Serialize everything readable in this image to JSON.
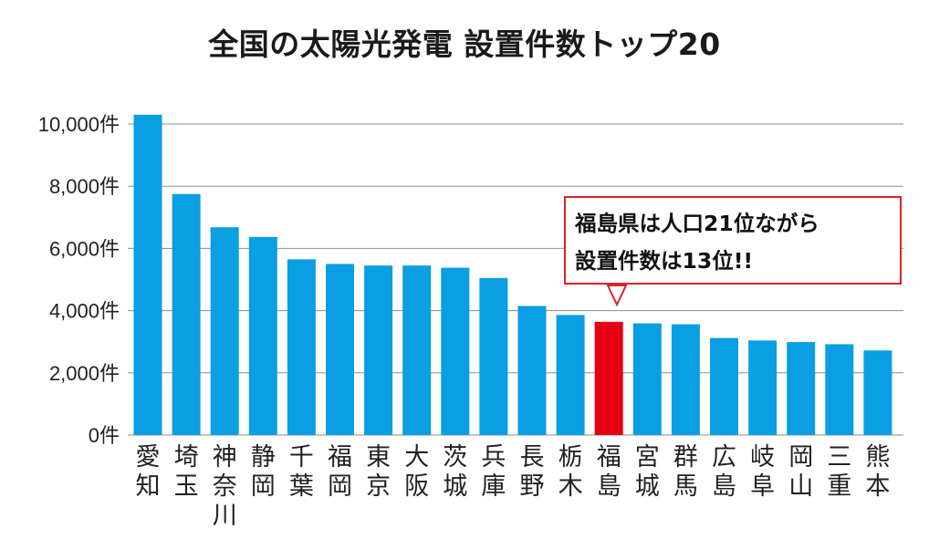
{
  "chart_data": {
    "type": "bar",
    "title": "全国の太陽光発電 設置件数トップ20",
    "xlabel": "",
    "ylabel": "",
    "ylim": [
      0,
      10000
    ],
    "y_ticks": [
      "0件",
      "2,000件",
      "4,000件",
      "6,000件",
      "8,000件",
      "10,000件"
    ],
    "grid": true,
    "categories": [
      "愛知",
      "埼玉",
      "神奈川",
      "静岡",
      "千葉",
      "福岡",
      "東京",
      "大阪",
      "茨城",
      "兵庫",
      "長野",
      "栃木",
      "福島",
      "宮城",
      "群馬",
      "広島",
      "岐阜",
      "岡山",
      "三重",
      "熊本"
    ],
    "values": [
      10300,
      7750,
      6680,
      6370,
      5650,
      5500,
      5450,
      5450,
      5380,
      5050,
      4150,
      3860,
      3640,
      3590,
      3560,
      3120,
      3040,
      2990,
      2920,
      2720
    ],
    "bar_color": "#0a9ee2",
    "highlight_color": "#e60012",
    "highlight_category": "福島",
    "annotation": {
      "text": "福島県は人口21位ながら\n設置件数は13位!!",
      "target": "福島",
      "border_color": "#d9242b"
    }
  }
}
